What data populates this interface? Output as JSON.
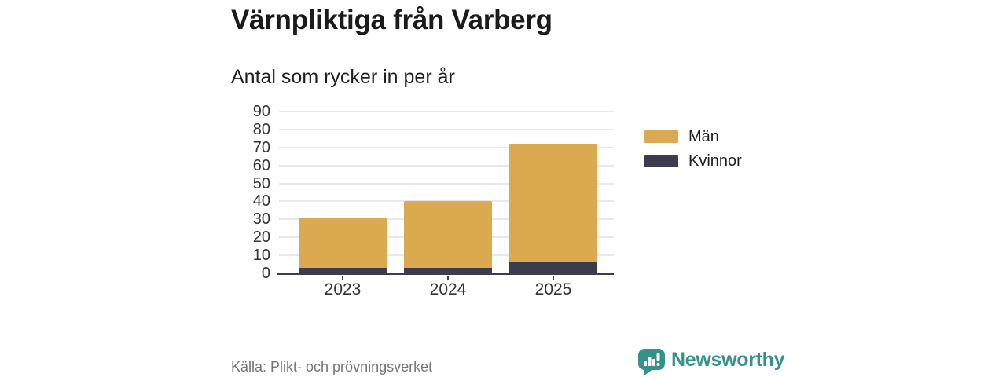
{
  "chart_data": {
    "type": "bar",
    "stacked": true,
    "title": "Värnpliktiga från Varberg",
    "subtitle": "Antal som rycker in per år",
    "categories": [
      "2023",
      "2024",
      "2025"
    ],
    "series": [
      {
        "name": "Kvinnor",
        "color": "#3C3C4E",
        "values": [
          3,
          3,
          6
        ]
      },
      {
        "name": "Män",
        "color": "#DBA94F",
        "values": [
          28,
          37,
          66
        ]
      }
    ],
    "stack_totals": [
      31,
      40,
      72
    ],
    "ylim": [
      0,
      90
    ],
    "ytick_step": 10,
    "ytick_labels": [
      "0",
      "10",
      "20",
      "30",
      "40",
      "50",
      "60",
      "70",
      "80",
      "90"
    ],
    "grid": true,
    "legend_position": "right"
  },
  "legend": {
    "items": [
      {
        "label": "Män",
        "color": "#DBA94F"
      },
      {
        "label": "Kvinnor",
        "color": "#3C3C4E"
      }
    ]
  },
  "footer": {
    "source": "Källa: Plikt- och prövningsverket",
    "brand": "Newsworthy"
  },
  "colors": {
    "bar_men": "#DBA94F",
    "bar_women": "#3C3C4E",
    "axis": "#3C3C4C",
    "gridline": "#E8E8E8",
    "text_dark": "#1F1F1F",
    "text_muted": "#757575",
    "brand_teal": "#35918A",
    "background": "#FFFFFF"
  }
}
